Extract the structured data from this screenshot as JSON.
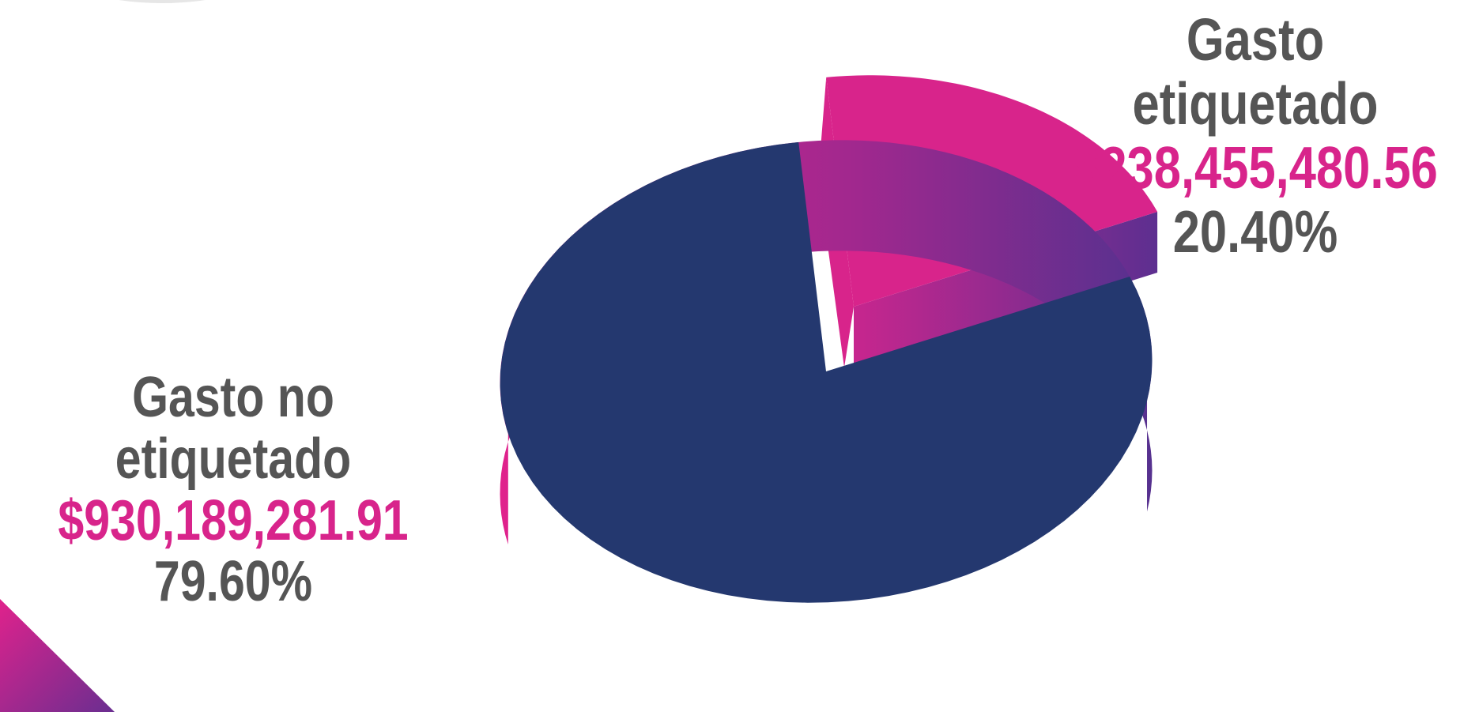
{
  "colors": {
    "navy": "#24386f",
    "magenta": "#d8248b",
    "purple": "#5b2d8f",
    "label_gray": "#555555",
    "amount_pink": "#d8248b"
  },
  "chart_data": {
    "type": "pie",
    "style": "3d-exploded",
    "slices": [
      {
        "name": "Gasto no etiquetado",
        "value": 930189281.91,
        "amount_label": "$930,189,281.91",
        "percent": 79.6,
        "percent_label": "79.60%",
        "color": "#24386f"
      },
      {
        "name": "Gasto etiquetado",
        "value": 238455480.56,
        "amount_label": "$238,455,480.56",
        "percent": 20.4,
        "percent_label": "20.40%",
        "color": "#d8248b"
      }
    ],
    "exploded_slice": "Gasto etiquetado"
  }
}
